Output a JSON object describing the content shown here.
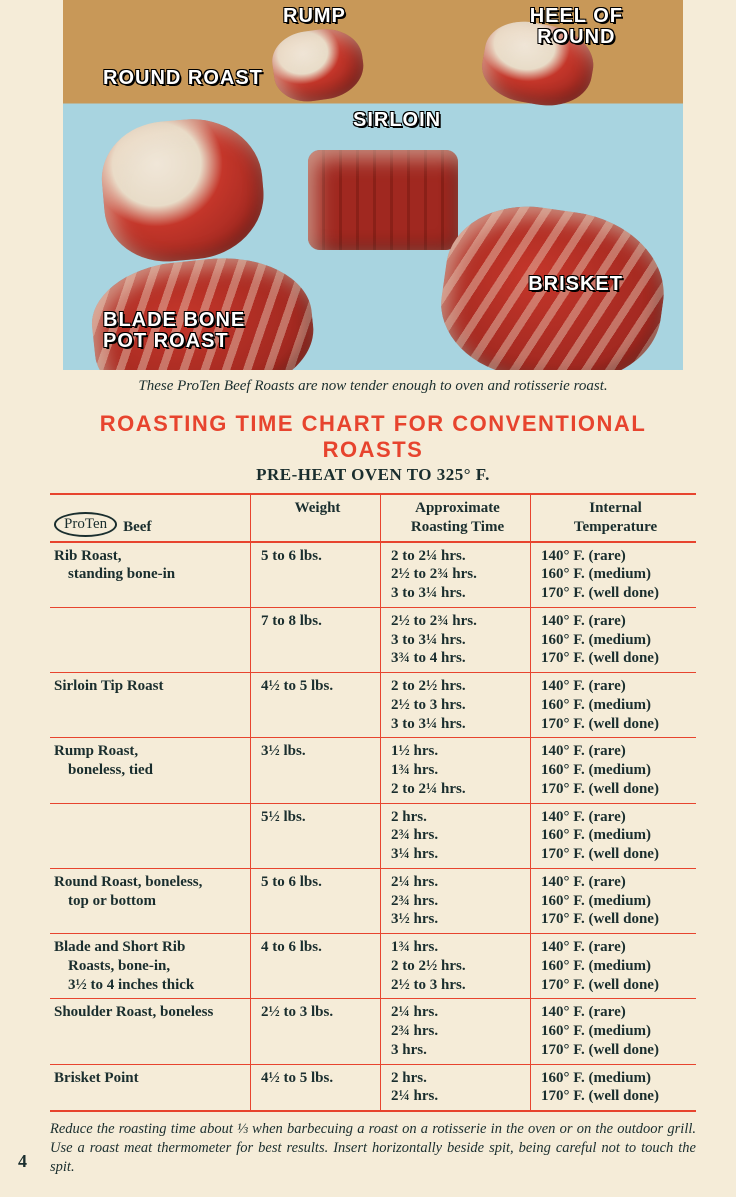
{
  "photo": {
    "labels": {
      "rump": "RUMP",
      "heel": "HEEL OF\nROUND",
      "round": "ROUND ROAST",
      "sirloin": "SIRLOIN",
      "blade": "BLADE BONE\nPOT ROAST",
      "brisket": "BRISKET"
    }
  },
  "caption": "These ProTen Beef Roasts are now tender enough to oven and rotisserie roast.",
  "title": "ROASTING TIME CHART FOR CONVENTIONAL ROASTS",
  "subtitle": "PRE-HEAT OVEN TO 325° F.",
  "brand": "ProTen",
  "headers": {
    "cut": "Beef",
    "weight": "Weight",
    "time": "Approximate\nRoasting Time",
    "temp": "Internal\nTemperature"
  },
  "rows": [
    {
      "cut": "Rib Roast,",
      "cut2": "standing bone-in",
      "weight": "5 to 6 lbs.",
      "times": [
        "2 to 2¼ hrs.",
        "2½ to 2¾ hrs.",
        "3 to 3¼ hrs."
      ],
      "temps": [
        "140° F. (rare)",
        "160° F. (medium)",
        "170° F. (well done)"
      ]
    },
    {
      "cut": "",
      "cut2": "",
      "weight": "7 to 8 lbs.",
      "times": [
        "2½ to 2¾ hrs.",
        "3 to 3¼ hrs.",
        "3¾ to 4 hrs."
      ],
      "temps": [
        "140° F. (rare)",
        "160° F. (medium)",
        "170° F. (well done)"
      ]
    },
    {
      "cut": "Sirloin Tip Roast",
      "cut2": "",
      "weight": "4½ to 5 lbs.",
      "times": [
        "2 to 2½ hrs.",
        "2½ to 3 hrs.",
        "3 to 3¼ hrs."
      ],
      "temps": [
        "140° F. (rare)",
        "160° F. (medium)",
        "170° F. (well done)"
      ]
    },
    {
      "cut": "Rump Roast,",
      "cut2": "boneless, tied",
      "weight": "3½ lbs.",
      "times": [
        "1½ hrs.",
        "1¾ hrs.",
        "2 to 2¼ hrs."
      ],
      "temps": [
        "140° F. (rare)",
        "160° F. (medium)",
        "170° F. (well done)"
      ]
    },
    {
      "cut": "",
      "cut2": "",
      "weight": "5½ lbs.",
      "times": [
        "2 hrs.",
        "2¾ hrs.",
        "3¼ hrs."
      ],
      "temps": [
        "140° F. (rare)",
        "160° F. (medium)",
        "170° F. (well done)"
      ]
    },
    {
      "cut": "Round Roast, boneless,",
      "cut2": "top or bottom",
      "weight": "5 to 6 lbs.",
      "times": [
        "2¼ hrs.",
        "2¾ hrs.",
        "3½ hrs."
      ],
      "temps": [
        "140° F. (rare)",
        "160° F. (medium)",
        "170° F. (well done)"
      ]
    },
    {
      "cut": "Blade and Short Rib",
      "cut2": "Roasts, bone-in,",
      "cut3": "3½ to 4 inches thick",
      "weight": "4 to 6 lbs.",
      "times": [
        "1¾ hrs.",
        "2 to 2½ hrs.",
        "2½ to 3 hrs."
      ],
      "temps": [
        "140° F. (rare)",
        "160° F. (medium)",
        "170° F. (well done)"
      ]
    },
    {
      "cut": "Shoulder Roast, boneless",
      "cut2": "",
      "weight": "2½ to 3 lbs.",
      "times": [
        "2¼ hrs.",
        "2¾ hrs.",
        "3 hrs."
      ],
      "temps": [
        "140° F. (rare)",
        "160° F. (medium)",
        "170° F. (well done)"
      ]
    },
    {
      "cut": "Brisket Point",
      "cut2": "",
      "weight": "4½ to 5 lbs.",
      "times": [
        "2 hrs.",
        "2¼ hrs."
      ],
      "temps": [
        "160° F. (medium)",
        "170° F. (well done)"
      ]
    }
  ],
  "footnote": "Reduce the roasting time about ⅓ when barbecuing a roast on a rotisserie in the oven or on the outdoor grill. Use a roast meat thermometer for best results. Insert horizontally beside spit, being careful not to touch the spit.",
  "pagenum": "4"
}
